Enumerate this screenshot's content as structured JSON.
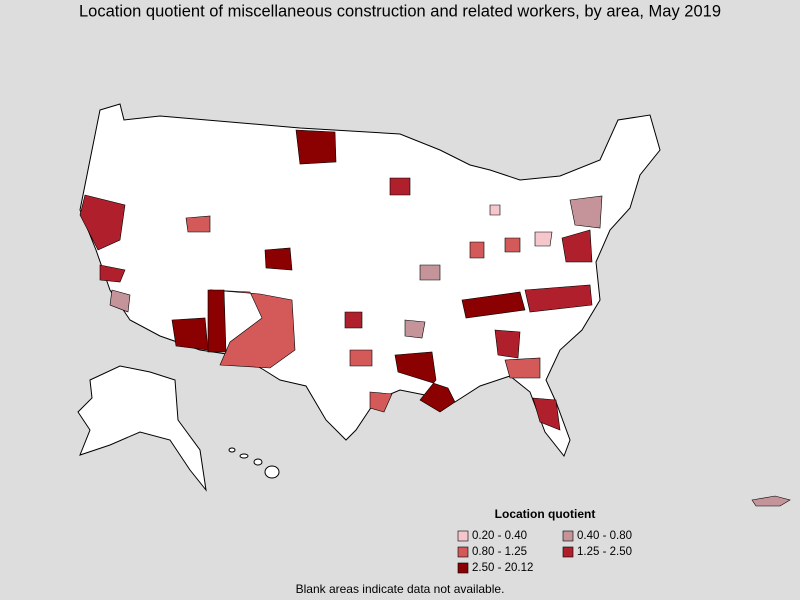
{
  "title": "Location quotient of miscellaneous construction and related workers, by area, May 2019",
  "legend": {
    "title": "Location quotient",
    "items": [
      {
        "label": "0.20 - 0.40",
        "color": "#f5c6cc"
      },
      {
        "label": "0.40 - 0.80",
        "color": "#c4949a"
      },
      {
        "label": "0.80 - 1.25",
        "color": "#d45a5a"
      },
      {
        "label": "1.25 - 2.50",
        "color": "#b0202c"
      },
      {
        "label": "2.50 - 20.12",
        "color": "#8b0000"
      }
    ]
  },
  "note": "Blank areas indicate data not available."
}
